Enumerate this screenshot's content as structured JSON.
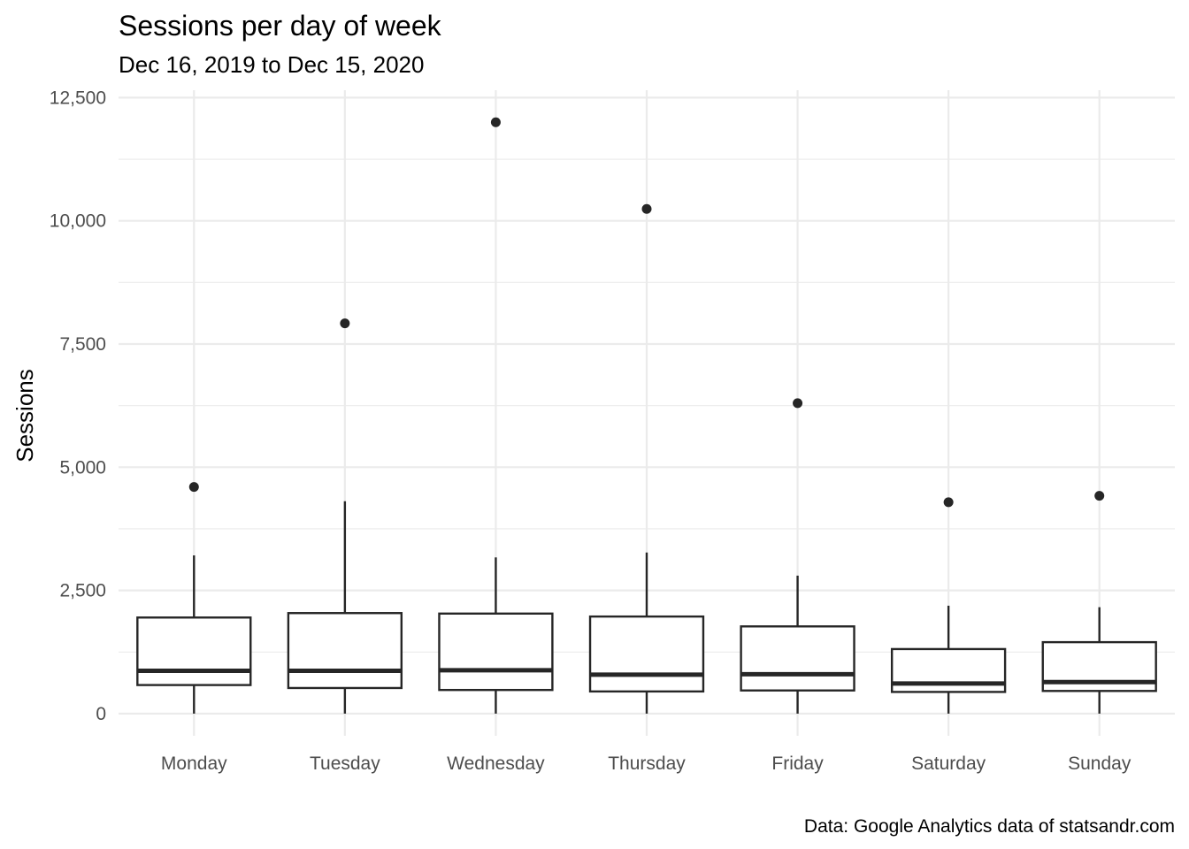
{
  "chart_data": {
    "type": "boxplot",
    "title": "Sessions per day of week",
    "subtitle": "Dec 16, 2019 to Dec 15, 2020",
    "caption": "Data: Google Analytics data of statsandr.com",
    "xlabel": "",
    "ylabel": "Sessions",
    "ylim": [
      -450,
      12650
    ],
    "y_ticks": [
      0,
      2500,
      5000,
      7500,
      10000,
      12500
    ],
    "y_tick_labels": [
      "0",
      "2,500",
      "5,000",
      "7,500",
      "10,000",
      "12,500"
    ],
    "y_minor_ticks": [
      1250,
      3750,
      6250,
      8750,
      11250
    ],
    "grid": true,
    "legend": "none",
    "categories": [
      "Monday",
      "Tuesday",
      "Wednesday",
      "Thursday",
      "Friday",
      "Saturday",
      "Sunday"
    ],
    "boxes": [
      {
        "category": "Monday",
        "whisker_low": 0,
        "q1": 580,
        "median": 870,
        "q3": 1950,
        "whisker_high": 3210,
        "outliers": [
          4600
        ]
      },
      {
        "category": "Tuesday",
        "whisker_low": 0,
        "q1": 520,
        "median": 870,
        "q3": 2040,
        "whisker_high": 4310,
        "outliers": [
          7920
        ]
      },
      {
        "category": "Wednesday",
        "whisker_low": 0,
        "q1": 480,
        "median": 880,
        "q3": 2030,
        "whisker_high": 3170,
        "outliers": [
          12000
        ]
      },
      {
        "category": "Thursday",
        "whisker_low": 0,
        "q1": 450,
        "median": 790,
        "q3": 1970,
        "whisker_high": 3270,
        "outliers": [
          10240
        ]
      },
      {
        "category": "Friday",
        "whisker_low": 0,
        "q1": 470,
        "median": 800,
        "q3": 1770,
        "whisker_high": 2800,
        "outliers": [
          6300
        ]
      },
      {
        "category": "Saturday",
        "whisker_low": 0,
        "q1": 440,
        "median": 610,
        "q3": 1310,
        "whisker_high": 2190,
        "outliers": [
          4290
        ]
      },
      {
        "category": "Sunday",
        "whisker_low": 0,
        "q1": 460,
        "median": 640,
        "q3": 1450,
        "whisker_high": 2160,
        "outliers": [
          4420
        ]
      }
    ],
    "colors": {
      "box_line": "#262626",
      "box_fill": "#ffffff",
      "grid": "#ebebeb",
      "tick_text": "#4d4d4d"
    }
  }
}
